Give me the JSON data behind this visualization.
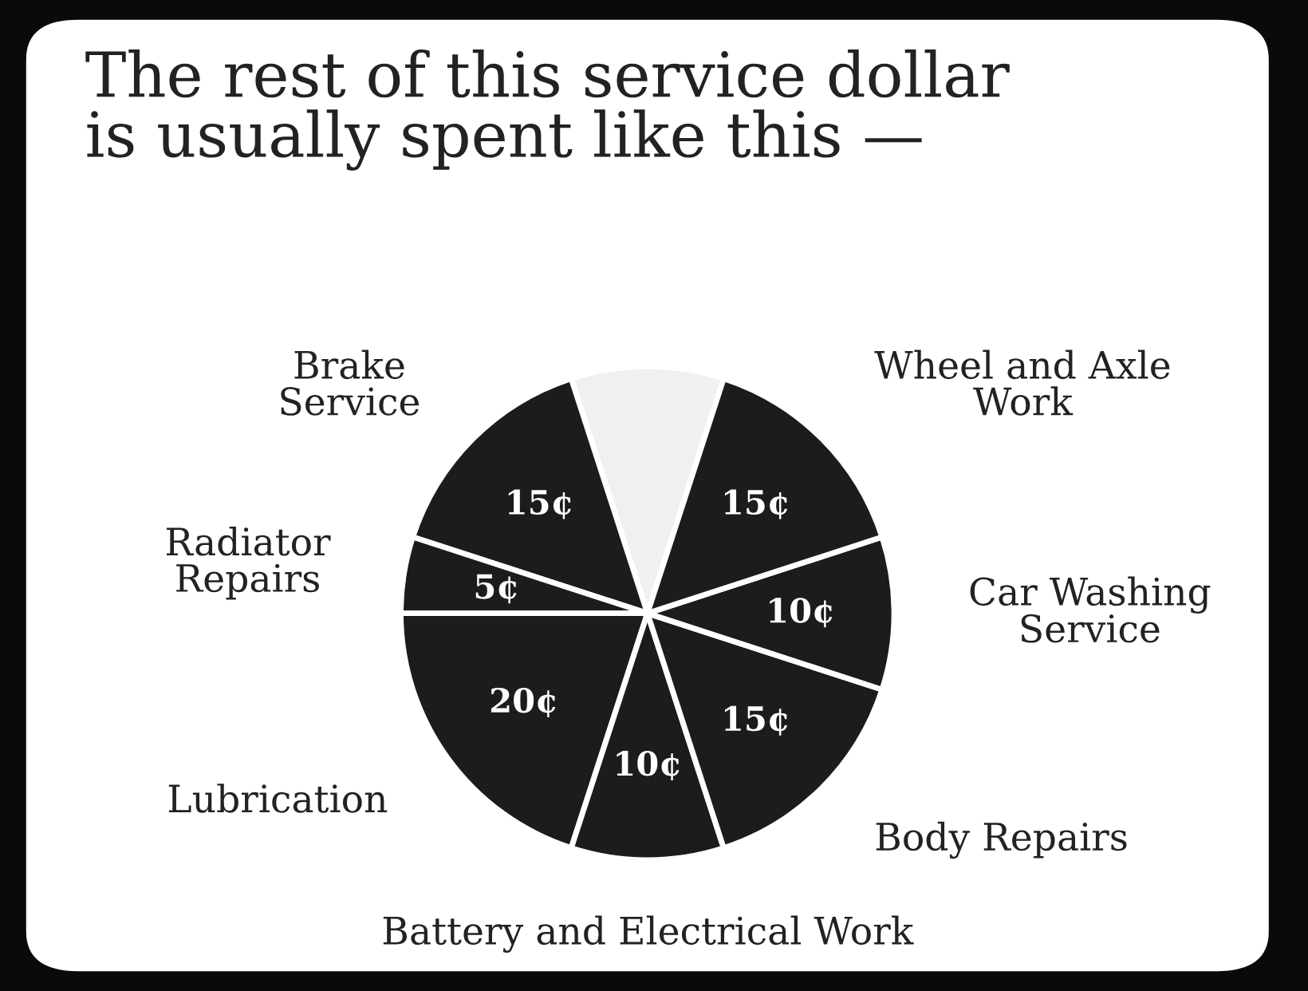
{
  "chart_data": {
    "type": "pie",
    "title": "The rest of this service dollar\nis usually spent like this —",
    "categories": [
      null,
      "Brake\nService",
      "Radiator\nRepairs",
      "Lubrication",
      "Battery and Electrical Work",
      "Body Repairs",
      "Car Washing\nService",
      "Wheel and Axle\nWork"
    ],
    "values": [
      10,
      15,
      5,
      20,
      10,
      15,
      10,
      15
    ],
    "value_labels": [
      null,
      "15¢",
      "5¢",
      "20¢",
      "10¢",
      "15¢",
      "10¢",
      "15¢"
    ],
    "colors": [
      "#f0f0f0",
      "#1c1c1c",
      "#1c1c1c",
      "#1c1c1c",
      "#1c1c1c",
      "#1c1c1c",
      "#1c1c1c",
      "#1c1c1c"
    ]
  }
}
